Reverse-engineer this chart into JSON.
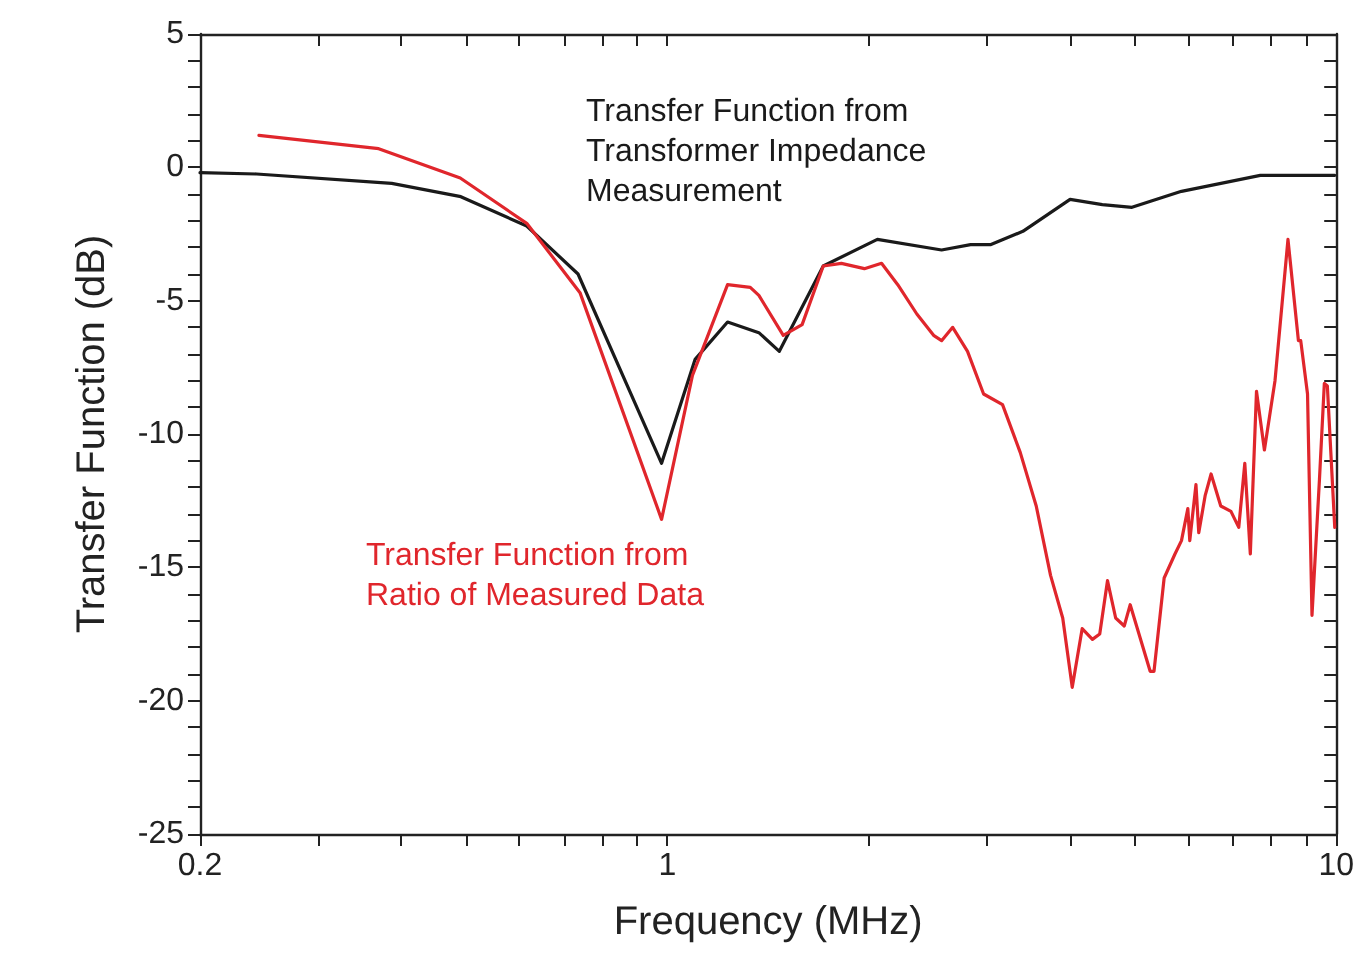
{
  "chart_data": {
    "type": "line",
    "xlabel": "Frequency (MHz)",
    "ylabel": "Transfer Function (dB)",
    "log": "x",
    "xlim": [
      0.2,
      10
    ],
    "ylim": [
      -25,
      5
    ],
    "xticks": [
      0.2,
      {
        "value": 0.3,
        "label": null
      },
      {
        "value": 0.4,
        "label": null
      },
      {
        "value": 0.5,
        "label": null
      },
      {
        "value": 0.6,
        "label": null
      },
      {
        "value": 0.7,
        "label": null
      },
      {
        "value": 0.8,
        "label": null
      },
      {
        "value": 0.9,
        "label": null
      },
      1,
      {
        "value": 2,
        "label": null
      },
      {
        "value": 3,
        "label": null
      },
      {
        "value": 4,
        "label": null
      },
      {
        "value": 5,
        "label": null
      },
      {
        "value": 6,
        "label": null
      },
      {
        "value": 7,
        "label": null
      },
      {
        "value": 8,
        "label": null
      },
      {
        "value": 9,
        "label": null
      },
      10
    ],
    "yticks": [
      -25,
      {
        "value": -24,
        "label": null
      },
      {
        "value": -23,
        "label": null
      },
      {
        "value": -22,
        "label": null
      },
      {
        "value": -21,
        "label": null
      },
      -20,
      {
        "value": -19,
        "label": null
      },
      {
        "value": -18,
        "label": null
      },
      {
        "value": -17,
        "label": null
      },
      {
        "value": -16,
        "label": null
      },
      -15,
      {
        "value": -14,
        "label": null
      },
      {
        "value": -13,
        "label": null
      },
      {
        "value": -12,
        "label": null
      },
      {
        "value": -11,
        "label": null
      },
      -10,
      {
        "value": -9,
        "label": null
      },
      {
        "value": -8,
        "label": null
      },
      {
        "value": -7,
        "label": null
      },
      {
        "value": -6,
        "label": null
      },
      -5,
      {
        "value": -4,
        "label": null
      },
      {
        "value": -3,
        "label": null
      },
      {
        "value": -2,
        "label": null
      },
      {
        "value": -1,
        "label": null
      },
      0,
      {
        "value": 1,
        "label": null
      },
      {
        "value": 2,
        "label": null
      },
      {
        "value": 3,
        "label": null
      },
      {
        "value": 4,
        "label": null
      },
      5
    ],
    "grid": false,
    "legend": false,
    "marker": "none",
    "line_style": "solid",
    "series": [
      {
        "name": "Transfer Function from Transformer Impedance Measurement",
        "color": "#1a1a1a",
        "x": [
          0.2,
          0.243,
          0.387,
          0.491,
          0.616,
          0.735,
          0.98,
          1.1,
          1.23,
          1.37,
          1.47,
          1.71,
          2.06,
          2.57,
          2.84,
          3.04,
          3.4,
          4.0,
          4.47,
          4.95,
          5.87,
          7.7,
          9.95
        ],
        "values": [
          -0.2,
          -0.25,
          -0.6,
          -1.1,
          -2.2,
          -4.0,
          -11.1,
          -7.2,
          -5.8,
          -6.2,
          -6.9,
          -3.7,
          -2.7,
          -3.1,
          -2.9,
          -2.9,
          -2.4,
          -1.2,
          -1.4,
          -1.5,
          -0.9,
          -0.3,
          -0.3
        ]
      },
      {
        "name": "Transfer Function from Ratio of Measured Data",
        "color": "#e0262c",
        "x": [
          0.245,
          0.37,
          0.49,
          0.616,
          0.74,
          0.98,
          1.09,
          1.23,
          1.33,
          1.37,
          1.49,
          1.59,
          1.71,
          1.82,
          1.97,
          2.09,
          2.21,
          2.36,
          2.5,
          2.57,
          2.67,
          2.81,
          2.97,
          3.17,
          3.37,
          3.56,
          3.74,
          3.9,
          4.03,
          4.17,
          4.32,
          4.43,
          4.55,
          4.68,
          4.82,
          4.92,
          5.27,
          5.34,
          5.53,
          5.74,
          5.87,
          6.0,
          6.04,
          6.17,
          6.23,
          6.37,
          6.5,
          6.72,
          6.96,
          7.15,
          7.3,
          7.44,
          7.6,
          7.81,
          8.1,
          8.47,
          8.78,
          8.85,
          9.06,
          9.2,
          9.44,
          9.6,
          9.7,
          9.95
        ],
        "values": [
          1.2,
          0.7,
          -0.4,
          -2.1,
          -4.7,
          -13.2,
          -7.8,
          -4.4,
          -4.5,
          -4.8,
          -6.3,
          -5.9,
          -3.7,
          -3.6,
          -3.8,
          -3.6,
          -4.4,
          -5.5,
          -6.3,
          -6.5,
          -6.0,
          -6.9,
          -8.5,
          -8.9,
          -10.7,
          -12.7,
          -15.3,
          -16.9,
          -19.5,
          -17.3,
          -17.7,
          -17.5,
          -15.5,
          -16.9,
          -17.2,
          -16.4,
          -18.9,
          -18.9,
          -15.4,
          -14.5,
          -14.0,
          -12.8,
          -14.0,
          -11.9,
          -13.7,
          -12.3,
          -11.5,
          -12.7,
          -12.9,
          -13.5,
          -11.1,
          -14.5,
          -8.4,
          -10.6,
          -8.0,
          -2.7,
          -6.5,
          -6.5,
          -8.5,
          -16.8,
          -11.7,
          -8.1,
          -8.2,
          -13.5
        ]
      }
    ]
  }
}
